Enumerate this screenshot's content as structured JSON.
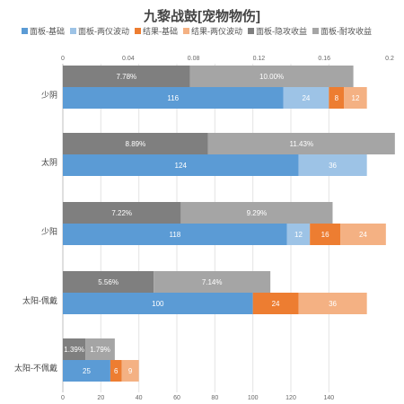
{
  "chart_data": {
    "type": "bar",
    "title": "九黎战鼓[宠物物伤]",
    "categories": [
      "少阴",
      "太阴",
      "少阳",
      "太阳-佩戴",
      "太阳-不佩戴"
    ],
    "top_axis": {
      "min": 0,
      "max": 0.2,
      "ticks": [
        "0",
        "0.04",
        "0.08",
        "0.12",
        "0.16",
        "0.2"
      ]
    },
    "bottom_axis": {
      "min": 0,
      "max": 180,
      "ticks": [
        "0",
        "20",
        "40",
        "60",
        "80",
        "100",
        "120",
        "140"
      ]
    },
    "legend": [
      {
        "name": "面板-基础",
        "color": "#5b9bd5"
      },
      {
        "name": "面板-两仪波动",
        "color": "#9dc3e6"
      },
      {
        "name": "结果-基础",
        "color": "#ed7d31"
      },
      {
        "name": "结果-两仪波动",
        "color": "#f4b183"
      },
      {
        "name": "面板-隐攻收益",
        "color": "#7f7f7f"
      },
      {
        "name": "面板-耐攻收益",
        "color": "#a5a5a5"
      }
    ],
    "top_series": [
      {
        "name": "面板-隐攻收益",
        "color": "#7f7f7f",
        "values": [
          0.0778,
          0.0889,
          0.0722,
          0.0556,
          0.0139
        ],
        "labels": [
          "7.78%",
          "8.89%",
          "7.22%",
          "5.56%",
          "1.39%"
        ]
      },
      {
        "name": "面板-耐攻收益",
        "color": "#a5a5a5",
        "values": [
          0.1,
          0.1143,
          0.0929,
          0.0714,
          0.0179
        ],
        "labels": [
          "10.00%",
          "11.43%",
          "9.29%",
          "7.14%",
          "1.79%"
        ]
      }
    ],
    "bottom_series": [
      {
        "name": "面板-基础",
        "color": "#5b9bd5",
        "values": [
          116,
          124,
          118,
          100,
          25
        ],
        "labels": [
          "116",
          "124",
          "118",
          "100",
          "25"
        ]
      },
      {
        "name": "面板-两仪波动",
        "color": "#9dc3e6",
        "values": [
          24,
          36,
          12,
          0,
          0
        ],
        "labels": [
          "24",
          "36",
          "12",
          "",
          ""
        ]
      },
      {
        "name": "结果-基础",
        "color": "#ed7d31",
        "values": [
          8,
          0,
          16,
          24,
          6
        ],
        "labels": [
          "8",
          "",
          "16",
          "24",
          "6"
        ]
      },
      {
        "name": "结果-两仪波动",
        "color": "#f4b183",
        "values": [
          12,
          0,
          24,
          36,
          9
        ],
        "labels": [
          "12",
          "",
          "24",
          "36",
          "9"
        ]
      }
    ]
  }
}
